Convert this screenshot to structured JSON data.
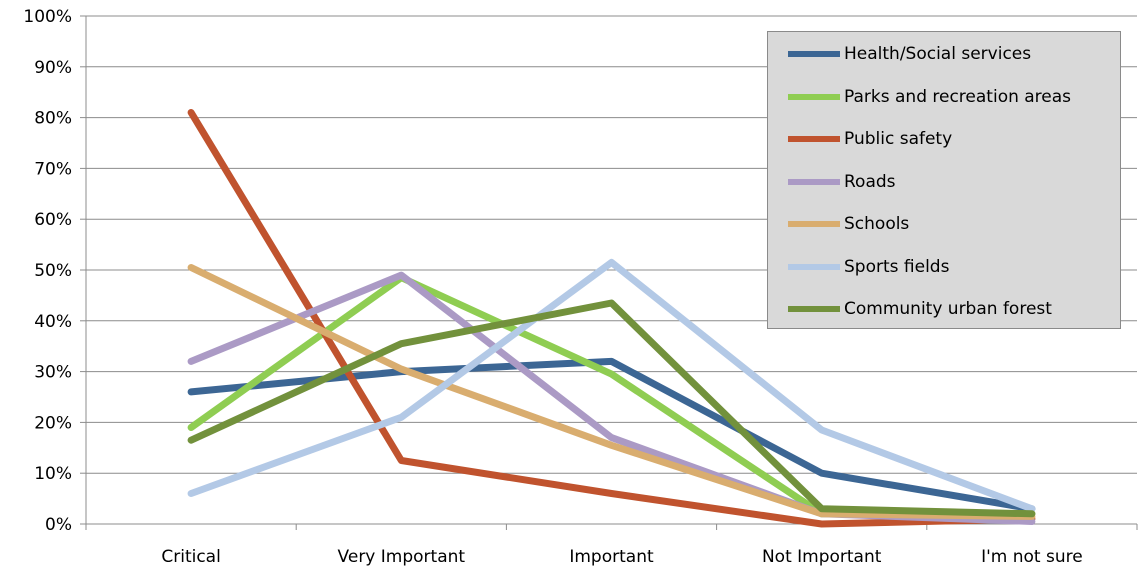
{
  "chart_data": {
    "type": "line",
    "categories": [
      "Critical",
      "Very Important",
      "Important",
      "Not Important",
      "I'm not sure"
    ],
    "y_ticks": [
      "0%",
      "10%",
      "20%",
      "30%",
      "40%",
      "50%",
      "60%",
      "70%",
      "80%",
      "90%",
      "100%"
    ],
    "ylim": [
      0,
      100
    ],
    "grid": true,
    "legend_position": "top-right",
    "series": [
      {
        "name": "Health/Social services",
        "color": "#3c6694",
        "values": [
          26,
          30,
          32,
          10,
          3
        ]
      },
      {
        "name": "Parks and recreation areas",
        "color": "#8fcd52",
        "values": [
          19,
          48.5,
          29.5,
          2,
          2
        ]
      },
      {
        "name": "Public safety",
        "color": "#c0532e",
        "values": [
          81,
          12.5,
          6,
          0,
          1
        ]
      },
      {
        "name": "Roads",
        "color": "#ab9ac5",
        "values": [
          32,
          49,
          17,
          2,
          0.5
        ]
      },
      {
        "name": "Schools",
        "color": "#d9ad6f",
        "values": [
          50.5,
          30.5,
          15.5,
          2,
          1.5
        ]
      },
      {
        "name": "Sports fields",
        "color": "#b3c9e6",
        "values": [
          6,
          21,
          51.5,
          18.5,
          3
        ]
      },
      {
        "name": "Community urban forest",
        "color": "#72913c",
        "values": [
          16.5,
          35.5,
          43.5,
          3,
          2
        ]
      }
    ]
  }
}
